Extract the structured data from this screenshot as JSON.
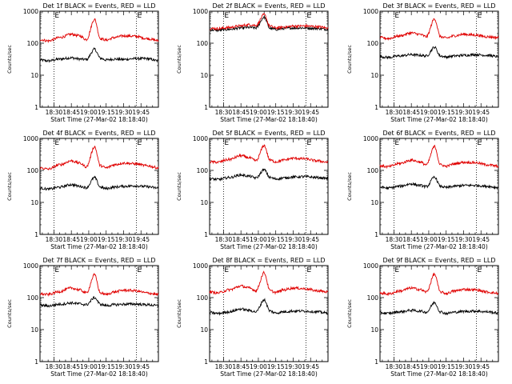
{
  "figure": {
    "ylabel": "Counts/sec",
    "xlabel": "Start Time (27-Mar-02 18:18:40)",
    "xtick_labels": [
      "18:30",
      "18:45",
      "19:00",
      "19:15",
      "19:30",
      "19:45"
    ],
    "ytick_labels": [
      "1",
      "10",
      "100",
      "1000"
    ],
    "marker_label": "E",
    "colors": {
      "events": "#000000",
      "lld": "#e00000"
    }
  },
  "chart_data": [
    {
      "type": "line",
      "title": "Det 1f BLACK = Events, RED = LLD",
      "x": [
        "18:18",
        "18:25",
        "18:35",
        "18:45",
        "18:52",
        "18:58",
        "19:05",
        "19:10",
        "19:15",
        "19:22",
        "19:30",
        "19:40",
        "19:50",
        "20:00"
      ],
      "xlim": [
        "18:18",
        "20:00"
      ],
      "ylim": [
        1,
        1000
      ],
      "yscale": "log",
      "markers": [
        "18:30",
        "19:41"
      ],
      "marker_label": "E",
      "series": [
        {
          "color": "#000000",
          "values": [
            30,
            28,
            32,
            35,
            32,
            31,
            65,
            34,
            30,
            32,
            31,
            33,
            33,
            28
          ]
        },
        {
          "color": "#e00000",
          "values": [
            130,
            118,
            150,
            190,
            170,
            130,
            560,
            140,
            125,
            150,
            170,
            165,
            140,
            120
          ]
        }
      ]
    },
    {
      "type": "line",
      "title": "Det 2f BLACK = Events, RED = LLD",
      "x": [
        "18:18",
        "18:25",
        "18:35",
        "18:45",
        "18:52",
        "18:58",
        "19:05",
        "19:10",
        "19:15",
        "19:22",
        "19:30",
        "19:40",
        "19:50",
        "20:00"
      ],
      "xlim": [
        "18:18",
        "20:00"
      ],
      "ylim": [
        1,
        1000
      ],
      "yscale": "log",
      "markers": [
        "18:30",
        "19:41"
      ],
      "marker_label": "E",
      "series": [
        {
          "color": "#000000",
          "values": [
            260,
            255,
            270,
            300,
            310,
            300,
            650,
            290,
            270,
            290,
            300,
            300,
            290,
            270
          ]
        },
        {
          "color": "#e00000",
          "values": [
            290,
            285,
            310,
            350,
            380,
            360,
            780,
            340,
            300,
            320,
            340,
            345,
            330,
            300
          ]
        }
      ]
    },
    {
      "type": "line",
      "title": "Det 3f BLACK = Events, RED = LLD",
      "x": [
        "18:18",
        "18:25",
        "18:35",
        "18:45",
        "18:52",
        "18:58",
        "19:05",
        "19:10",
        "19:15",
        "19:22",
        "19:30",
        "19:40",
        "19:50",
        "20:00"
      ],
      "xlim": [
        "18:18",
        "20:00"
      ],
      "ylim": [
        1,
        1000
      ],
      "yscale": "log",
      "markers": [
        "18:30",
        "19:41"
      ],
      "marker_label": "E",
      "series": [
        {
          "color": "#000000",
          "values": [
            38,
            36,
            40,
            44,
            42,
            40,
            75,
            40,
            37,
            40,
            42,
            44,
            42,
            38
          ]
        },
        {
          "color": "#e00000",
          "values": [
            150,
            140,
            170,
            210,
            190,
            160,
            580,
            160,
            145,
            170,
            190,
            180,
            160,
            150
          ]
        }
      ]
    },
    {
      "type": "line",
      "title": "Det 4f BLACK = Events, RED = LLD",
      "x": [
        "18:18",
        "18:25",
        "18:35",
        "18:45",
        "18:52",
        "18:58",
        "19:05",
        "19:10",
        "19:15",
        "19:22",
        "19:30",
        "19:40",
        "19:50",
        "20:00"
      ],
      "xlim": [
        "18:18",
        "20:00"
      ],
      "ylim": [
        1,
        1000
      ],
      "yscale": "log",
      "markers": [
        "18:30",
        "19:41"
      ],
      "marker_label": "E",
      "series": [
        {
          "color": "#000000",
          "values": [
            28,
            26,
            30,
            36,
            32,
            29,
            60,
            30,
            27,
            30,
            32,
            33,
            31,
            28
          ]
        },
        {
          "color": "#e00000",
          "values": [
            120,
            110,
            150,
            200,
            170,
            130,
            550,
            140,
            120,
            150,
            170,
            160,
            140,
            120
          ]
        }
      ]
    },
    {
      "type": "line",
      "title": "Det 5f BLACK = Events, RED = LLD",
      "x": [
        "18:18",
        "18:25",
        "18:35",
        "18:45",
        "18:52",
        "18:58",
        "19:05",
        "19:10",
        "19:15",
        "19:22",
        "19:30",
        "19:40",
        "19:50",
        "20:00"
      ],
      "xlim": [
        "18:18",
        "20:00"
      ],
      "ylim": [
        1,
        1000
      ],
      "yscale": "log",
      "markers": [
        "18:30",
        "19:41"
      ],
      "marker_label": "E",
      "series": [
        {
          "color": "#000000",
          "values": [
            55,
            52,
            60,
            72,
            66,
            58,
            105,
            60,
            54,
            58,
            62,
            64,
            60,
            56
          ]
        },
        {
          "color": "#e00000",
          "values": [
            185,
            180,
            220,
            290,
            250,
            200,
            600,
            210,
            185,
            210,
            240,
            230,
            200,
            180
          ]
        }
      ]
    },
    {
      "type": "line",
      "title": "Det 6f BLACK = Events, RED = LLD",
      "x": [
        "18:18",
        "18:25",
        "18:35",
        "18:45",
        "18:52",
        "18:58",
        "19:05",
        "19:10",
        "19:15",
        "19:22",
        "19:30",
        "19:40",
        "19:50",
        "20:00"
      ],
      "xlim": [
        "18:18",
        "20:00"
      ],
      "ylim": [
        1,
        1000
      ],
      "yscale": "log",
      "markers": [
        "18:30",
        "19:41"
      ],
      "marker_label": "E",
      "series": [
        {
          "color": "#000000",
          "values": [
            30,
            28,
            32,
            38,
            34,
            31,
            62,
            32,
            29,
            32,
            34,
            34,
            32,
            29
          ]
        },
        {
          "color": "#e00000",
          "values": [
            140,
            130,
            165,
            210,
            185,
            150,
            560,
            150,
            135,
            160,
            180,
            175,
            150,
            135
          ]
        }
      ]
    },
    {
      "type": "line",
      "title": "Det 7f BLACK = Events, RED = LLD",
      "x": [
        "18:18",
        "18:25",
        "18:35",
        "18:45",
        "18:52",
        "18:58",
        "19:05",
        "19:10",
        "19:15",
        "19:22",
        "19:30",
        "19:40",
        "19:50",
        "20:00"
      ],
      "xlim": [
        "18:18",
        "20:00"
      ],
      "ylim": [
        1,
        1000
      ],
      "yscale": "log",
      "markers": [
        "18:30",
        "19:41"
      ],
      "marker_label": "E",
      "series": [
        {
          "color": "#000000",
          "values": [
            58,
            55,
            62,
            68,
            64,
            60,
            100,
            62,
            56,
            60,
            62,
            63,
            60,
            56
          ]
        },
        {
          "color": "#e00000",
          "values": [
            130,
            125,
            155,
            200,
            175,
            140,
            520,
            140,
            125,
            150,
            170,
            165,
            140,
            125
          ]
        }
      ]
    },
    {
      "type": "line",
      "title": "Det 8f BLACK = Events, RED = LLD",
      "x": [
        "18:18",
        "18:25",
        "18:35",
        "18:45",
        "18:52",
        "18:58",
        "19:05",
        "19:10",
        "19:15",
        "19:22",
        "19:30",
        "19:40",
        "19:50",
        "20:00"
      ],
      "xlim": [
        "18:18",
        "20:00"
      ],
      "ylim": [
        1,
        1000
      ],
      "yscale": "log",
      "markers": [
        "18:30",
        "19:41"
      ],
      "marker_label": "E",
      "series": [
        {
          "color": "#000000",
          "values": [
            34,
            32,
            36,
            44,
            40,
            36,
            85,
            38,
            33,
            36,
            38,
            38,
            36,
            33
          ]
        },
        {
          "color": "#e00000",
          "values": [
            150,
            140,
            175,
            230,
            200,
            165,
            600,
            165,
            145,
            175,
            200,
            190,
            165,
            150
          ]
        }
      ]
    },
    {
      "type": "line",
      "title": "Det 9f BLACK = Events, RED = LLD",
      "x": [
        "18:18",
        "18:25",
        "18:35",
        "18:45",
        "18:52",
        "18:58",
        "19:05",
        "19:10",
        "19:15",
        "19:22",
        "19:30",
        "19:40",
        "19:50",
        "20:00"
      ],
      "xlim": [
        "18:18",
        "20:00"
      ],
      "ylim": [
        1,
        1000
      ],
      "yscale": "log",
      "markers": [
        "18:30",
        "19:41"
      ],
      "marker_label": "E",
      "series": [
        {
          "color": "#000000",
          "values": [
            34,
            32,
            36,
            40,
            38,
            35,
            70,
            36,
            32,
            35,
            37,
            38,
            36,
            33
          ]
        },
        {
          "color": "#e00000",
          "values": [
            140,
            130,
            160,
            200,
            180,
            150,
            540,
            150,
            135,
            160,
            180,
            175,
            150,
            135
          ]
        }
      ]
    }
  ]
}
